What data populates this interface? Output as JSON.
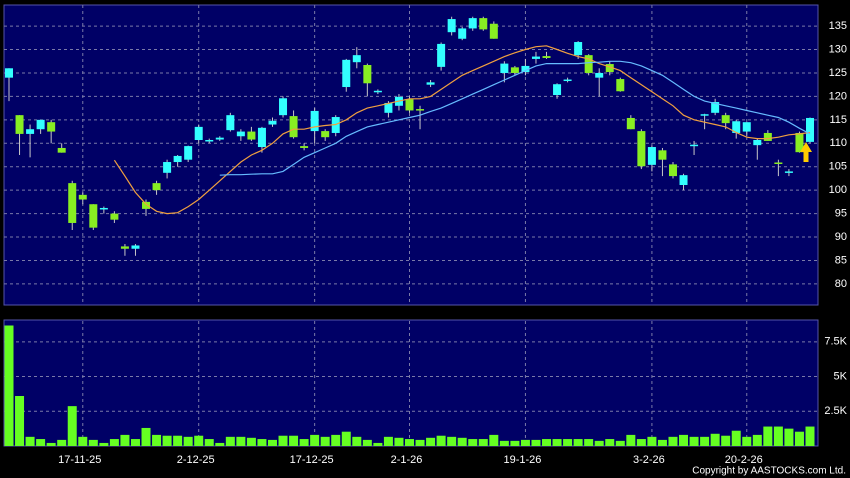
{
  "chart_data": [
    {
      "type": "candlestick",
      "categories": [
        null,
        null,
        null,
        null,
        null,
        null,
        null,
        "17-11-25",
        null,
        null,
        null,
        null,
        null,
        null,
        null,
        null,
        null,
        null,
        "2-12-25",
        null,
        null,
        null,
        null,
        null,
        null,
        null,
        null,
        null,
        null,
        "17-12-25",
        null,
        null,
        null,
        null,
        null,
        null,
        null,
        null,
        "2-1-26",
        null,
        null,
        null,
        null,
        null,
        null,
        null,
        null,
        null,
        null,
        "19-1-26",
        null,
        null,
        null,
        null,
        null,
        null,
        null,
        null,
        null,
        null,
        null,
        "3-2-26",
        null,
        null,
        null,
        null,
        null,
        null,
        null,
        null,
        "20-2-26",
        null,
        null,
        null,
        null,
        null,
        null
      ],
      "open": [
        124,
        116,
        112,
        113,
        114.5,
        109,
        101.5,
        99,
        97,
        96,
        95,
        88,
        87.5,
        97.5,
        101.5,
        103.7,
        106,
        106.5,
        110.7,
        110.5,
        110.8,
        112.8,
        111.5,
        112.5,
        109.2,
        114,
        116,
        115.8,
        109.4,
        112.6,
        112.6,
        112.2,
        122,
        127.3,
        126.7,
        121,
        116.5,
        118,
        119.4,
        117.3,
        122.5,
        126.3,
        133.7,
        132.3,
        134.5,
        136.7,
        135.5,
        125,
        126.2,
        125.2,
        128,
        128.6,
        120.3,
        123.3,
        128.8,
        128.8,
        124,
        126.9,
        123.7,
        115.4,
        112.6,
        105.4,
        108.5,
        105.5,
        101.1,
        109.5,
        116,
        116.5,
        116,
        112.2,
        112.5,
        109.6,
        112.2,
        105.9,
        103.8,
        112.2,
        110.3
      ],
      "high": [
        126,
        116,
        114,
        115,
        115,
        110,
        102,
        99.5,
        97,
        96.5,
        95.5,
        88.5,
        88.5,
        98,
        102,
        106.5,
        107.5,
        109.5,
        114,
        111,
        111.5,
        116.5,
        113,
        113.5,
        113.5,
        115.5,
        120,
        117,
        110,
        117.5,
        113,
        116,
        128,
        130.5,
        127,
        121.5,
        119,
        120.5,
        120,
        118,
        123.5,
        131.5,
        137,
        134.8,
        137,
        137,
        136,
        127.5,
        126.5,
        128,
        129.5,
        129.5,
        122.8,
        124,
        131.8,
        129,
        126,
        127.5,
        124,
        116,
        113,
        109.5,
        109,
        106,
        103.5,
        110.5,
        116.3,
        119.5,
        116.5,
        115,
        114.5,
        111,
        112.8,
        106.5,
        104.5,
        112.5,
        115.5
      ],
      "low": [
        119,
        107.5,
        107,
        112,
        110,
        108,
        91.5,
        97,
        91.5,
        95,
        93,
        86,
        86,
        94.5,
        99,
        102.5,
        105,
        106,
        110,
        110,
        110.5,
        112.5,
        110.5,
        110.5,
        108,
        113.5,
        115.5,
        111,
        108.5,
        110,
        110.5,
        111.5,
        121,
        126,
        120,
        120.5,
        115.5,
        117,
        116.5,
        113,
        122,
        125.5,
        133,
        132,
        134,
        134,
        132.3,
        123,
        124.5,
        124.5,
        127,
        128,
        119.5,
        123,
        128,
        124.5,
        120,
        124.5,
        121,
        113,
        104.5,
        104,
        103,
        102.5,
        100,
        107.5,
        113,
        116,
        113,
        111,
        111.5,
        106.5,
        110.5,
        103,
        103,
        108,
        110
      ],
      "close": [
        126,
        112,
        113,
        115,
        112.5,
        108,
        93,
        98,
        92,
        96.2,
        93.7,
        87.5,
        88.2,
        96,
        100,
        106,
        107.3,
        109.4,
        113.5,
        110.7,
        111.2,
        116,
        112.5,
        110.8,
        113.3,
        114.8,
        119.6,
        111.3,
        109,
        116.9,
        111.3,
        115.6,
        127.8,
        128.8,
        122.8,
        121.2,
        118.6,
        119.9,
        117,
        117,
        123,
        131.2,
        136.5,
        134.5,
        136.7,
        134.3,
        132.3,
        127,
        125,
        126.5,
        128.5,
        128.2,
        122.6,
        123.6,
        131.6,
        125,
        125,
        125.2,
        121.1,
        113,
        105.1,
        109.2,
        106.5,
        103,
        103.2,
        109.7,
        116.2,
        118.8,
        114.3,
        114.7,
        114.5,
        110.7,
        110.5,
        105.7,
        104,
        108.1,
        115.4
      ],
      "lines": [
        {
          "color": "#f0a040",
          "values": [
            null,
            null,
            null,
            null,
            null,
            null,
            null,
            null,
            null,
            null,
            106.4,
            103,
            99.5,
            97,
            95.5,
            95,
            95.2,
            96.5,
            98,
            100,
            102,
            104,
            106,
            107.5,
            108.5,
            110,
            112,
            113,
            113,
            113.5,
            113.8,
            114,
            115,
            116.5,
            117.5,
            118,
            118.5,
            119,
            119.5,
            119.5,
            120,
            121.5,
            123,
            124.5,
            125.5,
            126.5,
            127.5,
            128.5,
            129.3,
            130,
            130.6,
            130.8,
            130,
            129.2,
            128.5,
            128,
            127,
            126.3,
            125.5,
            124,
            122.5,
            121,
            119.5,
            118,
            116,
            115,
            114.5,
            114,
            113.5,
            112.3,
            111.3,
            111,
            111,
            111.3,
            111.8,
            112,
            112.3
          ]
        },
        {
          "color": "#66bbff",
          "values": [
            null,
            null,
            null,
            null,
            null,
            null,
            null,
            null,
            null,
            null,
            null,
            null,
            null,
            null,
            null,
            null,
            null,
            null,
            null,
            null,
            103.2,
            103.3,
            103.3,
            103.4,
            103.5,
            103.5,
            104,
            105.5,
            107,
            108,
            109,
            110,
            111.5,
            112.5,
            113.5,
            114,
            114.5,
            115,
            115.5,
            116,
            116.8,
            117.5,
            118.5,
            119.5,
            120.5,
            121.5,
            122.5,
            123.5,
            124.5,
            125.5,
            126.5,
            127,
            127,
            127,
            127,
            127.2,
            127.3,
            127.5,
            127.5,
            127.2,
            126.5,
            125.5,
            124.5,
            123,
            121.5,
            120,
            119,
            118.5,
            118,
            117.5,
            117,
            116.5,
            116,
            115.5,
            114.5,
            113.2,
            112
          ]
        }
      ],
      "up_color": "#33ffff",
      "down_color": "#88ee22",
      "ylim": [
        75.5,
        139.5
      ],
      "yticks": [
        80,
        85,
        90,
        95,
        100,
        105,
        110,
        115,
        120,
        125,
        130,
        135
      ],
      "grid": true
    },
    {
      "type": "bar",
      "color": "#66ff22",
      "values": [
        8676,
        3600,
        660,
        500,
        220,
        440,
        2870,
        660,
        440,
        220,
        500,
        800,
        500,
        1300,
        800,
        740,
        740,
        660,
        740,
        500,
        220,
        660,
        660,
        590,
        500,
        440,
        740,
        740,
        500,
        800,
        660,
        800,
        1030,
        660,
        440,
        220,
        660,
        590,
        500,
        440,
        590,
        740,
        660,
        590,
        500,
        500,
        800,
        370,
        370,
        440,
        440,
        500,
        500,
        500,
        500,
        500,
        370,
        500,
        370,
        800,
        500,
        660,
        440,
        660,
        800,
        660,
        660,
        880,
        740,
        1100,
        660,
        800,
        1400,
        1400,
        1250,
        1030,
        1400
      ],
      "ylim": [
        0,
        9000
      ],
      "yticks": [
        {
          "value": 2500,
          "label": "2.5K"
        },
        {
          "value": 5000,
          "label": "5K"
        },
        {
          "value": 7500,
          "label": "7.5K"
        }
      ],
      "grid": true
    }
  ],
  "footer": "Copyright by AASTOCKS.com Ltd."
}
